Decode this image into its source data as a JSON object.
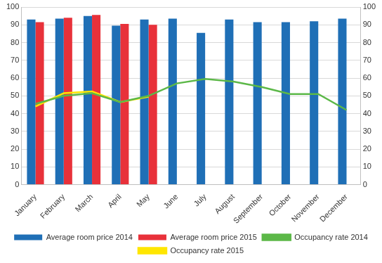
{
  "chart_data": {
    "type": "bar",
    "categories": [
      "January",
      "February",
      "March",
      "April",
      "May",
      "June",
      "July",
      "August",
      "September",
      "October",
      "November",
      "December"
    ],
    "series": [
      {
        "name": "Average room price 2014",
        "type": "bar",
        "color": "#1f6fb6",
        "values": [
          93,
          93.5,
          95,
          89.5,
          93,
          93.5,
          85.5,
          93,
          91.5,
          91.5,
          92,
          93.5
        ]
      },
      {
        "name": "Average room price 2015",
        "type": "bar",
        "color": "#e8313a",
        "values": [
          91.5,
          94,
          95.5,
          90.5,
          90,
          null,
          null,
          null,
          null,
          null,
          null,
          null
        ]
      },
      {
        "name": "Occupancy rate 2014",
        "type": "line",
        "color": "#5cb848",
        "marker": "none",
        "axis": "y2",
        "values": [
          45.5,
          50,
          51.5,
          46.5,
          50,
          57,
          59.5,
          58,
          55,
          51,
          51,
          42
        ]
      },
      {
        "name": "Occupancy rate 2015",
        "type": "line",
        "color": "#ffe600",
        "marker": "none",
        "axis": "y2",
        "values": [
          44,
          51.5,
          52.5,
          46.5,
          49.5,
          null,
          null,
          null,
          null,
          null,
          null,
          null
        ]
      }
    ],
    "ylim": [
      0,
      100
    ],
    "yticks": [
      0,
      10,
      20,
      30,
      40,
      50,
      60,
      70,
      80,
      90,
      100
    ],
    "y2lim": [
      0,
      100
    ],
    "y2ticks": [
      0,
      10,
      20,
      30,
      40,
      50,
      60,
      70,
      80,
      90,
      100
    ],
    "grid": true,
    "legend": "bottom"
  }
}
